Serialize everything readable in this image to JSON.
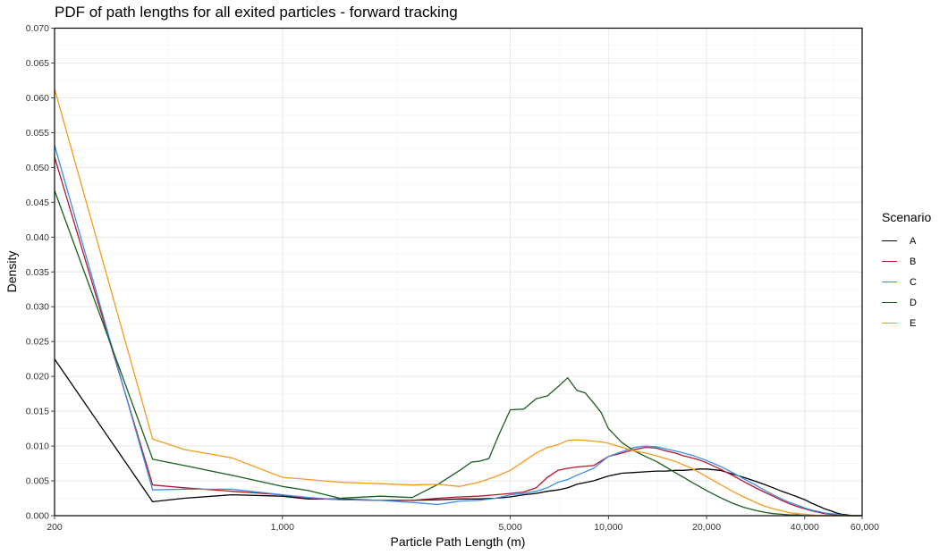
{
  "chart_data": {
    "type": "line",
    "title": "PDF of path lengths for all exited particles - forward tracking",
    "xlabel": "Particle Path Length (m)",
    "ylabel": "Density",
    "xscale": "log",
    "xlim": [
      200,
      60000
    ],
    "ylim": [
      0,
      0.07
    ],
    "x_ticks": [
      200,
      1000,
      5000,
      10000,
      20000,
      40000,
      60000
    ],
    "x_tick_labels": [
      "200",
      "1,000",
      "5,000",
      "10,000",
      "20,000",
      "40,000",
      "60,000"
    ],
    "y_ticks": [
      0,
      0.005,
      0.01,
      0.015,
      0.02,
      0.025,
      0.03,
      0.035,
      0.04,
      0.045,
      0.05,
      0.055,
      0.06,
      0.065,
      0.07
    ],
    "y_tick_labels": [
      "0.000",
      "0.005",
      "0.010",
      "0.015",
      "0.020",
      "0.025",
      "0.030",
      "0.035",
      "0.040",
      "0.045",
      "0.050",
      "0.055",
      "0.060",
      "0.065",
      "0.070"
    ],
    "grid": true,
    "legend": {
      "title": "Scenario",
      "position": "right"
    },
    "series": [
      {
        "name": "A",
        "color": "#000000",
        "x": [
          200,
          400,
          500,
          700,
          1000,
          1200,
          1500,
          2000,
          2500,
          3000,
          3500,
          4000,
          4500,
          5000,
          5500,
          6000,
          6500,
          7000,
          7500,
          8000,
          9000,
          10000,
          11000,
          12000,
          13000,
          14000,
          15000,
          16000,
          17000,
          18000,
          19000,
          20000,
          22000,
          24000,
          26000,
          28000,
          30000,
          32000,
          34000,
          36000,
          38000,
          40000,
          42000,
          44000,
          46000,
          48000,
          50000,
          52000,
          54000,
          56000,
          60000
        ],
        "y": [
          0.0225,
          0.002,
          0.0025,
          0.003,
          0.0028,
          0.0024,
          0.0024,
          0.0022,
          0.0022,
          0.0023,
          0.0024,
          0.0024,
          0.0025,
          0.0027,
          0.003,
          0.0032,
          0.0035,
          0.0037,
          0.004,
          0.0045,
          0.005,
          0.0057,
          0.0061,
          0.0062,
          0.0063,
          0.0064,
          0.0064,
          0.0065,
          0.0065,
          0.0066,
          0.0067,
          0.0067,
          0.0065,
          0.006,
          0.0055,
          0.005,
          0.0045,
          0.004,
          0.0035,
          0.0031,
          0.0027,
          0.0023,
          0.0018,
          0.0014,
          0.001,
          0.0007,
          0.0004,
          0.0002,
          0.0001,
          0,
          0
        ]
      },
      {
        "name": "B",
        "color": "#b2182b",
        "x": [
          200,
          400,
          500,
          700,
          1000,
          1200,
          1500,
          2000,
          2500,
          3000,
          3500,
          4000,
          4500,
          5000,
          5500,
          6000,
          6500,
          7000,
          7500,
          8000,
          9000,
          10000,
          11000,
          12000,
          13000,
          14000,
          15000,
          16000,
          17000,
          18000,
          19000,
          20000,
          22000,
          24000,
          26000,
          28000,
          30000,
          32000,
          34000,
          36000,
          38000,
          40000,
          42000,
          44000,
          46000,
          48000,
          50000,
          52000,
          54000,
          56000,
          60000
        ],
        "y": [
          0.0515,
          0.0044,
          0.004,
          0.0035,
          0.003,
          0.0025,
          0.0023,
          0.0022,
          0.0022,
          0.0025,
          0.0027,
          0.0028,
          0.003,
          0.0032,
          0.0034,
          0.004,
          0.0055,
          0.0065,
          0.0068,
          0.007,
          0.0072,
          0.0085,
          0.009,
          0.0095,
          0.0098,
          0.0097,
          0.0093,
          0.009,
          0.0086,
          0.0083,
          0.008,
          0.0076,
          0.0067,
          0.0058,
          0.0049,
          0.0041,
          0.0034,
          0.0028,
          0.0022,
          0.0017,
          0.0013,
          0.001,
          0.0007,
          0.0005,
          0.0003,
          0.0002,
          0.0001,
          0.0001,
          0,
          0,
          0
        ]
      },
      {
        "name": "C",
        "color": "#3a8ce8",
        "x": [
          200,
          400,
          500,
          700,
          1000,
          1200,
          1500,
          2000,
          2500,
          3000,
          3500,
          4000,
          4500,
          5000,
          5500,
          6000,
          6500,
          7000,
          7500,
          8000,
          9000,
          10000,
          11000,
          12000,
          13000,
          14000,
          15000,
          16000,
          17000,
          18000,
          19000,
          20000,
          22000,
          24000,
          26000,
          28000,
          30000,
          32000,
          34000,
          36000,
          38000,
          40000,
          42000,
          44000,
          46000,
          48000,
          50000,
          52000,
          54000,
          56000,
          60000
        ],
        "y": [
          0.0532,
          0.0037,
          0.0038,
          0.0038,
          0.003,
          0.0026,
          0.0023,
          0.0022,
          0.0019,
          0.0016,
          0.0021,
          0.0022,
          0.0025,
          0.003,
          0.0032,
          0.0035,
          0.004,
          0.0048,
          0.0052,
          0.0058,
          0.0068,
          0.0085,
          0.0092,
          0.0098,
          0.01,
          0.0099,
          0.0096,
          0.0093,
          0.009,
          0.0087,
          0.0083,
          0.0079,
          0.0071,
          0.0062,
          0.0053,
          0.0045,
          0.0037,
          0.003,
          0.0024,
          0.0019,
          0.0015,
          0.0011,
          0.0008,
          0.0006,
          0.0004,
          0.0003,
          0.0002,
          0.0001,
          0,
          0,
          0
        ]
      },
      {
        "name": "D",
        "color": "#1b5e20",
        "x": [
          200,
          400,
          500,
          700,
          1000,
          1200,
          1500,
          2000,
          2500,
          3000,
          3500,
          3800,
          4000,
          4300,
          4600,
          5000,
          5500,
          6000,
          6500,
          7000,
          7500,
          8000,
          8500,
          9000,
          9500,
          10000,
          11000,
          12000,
          13000,
          14000,
          15000,
          16000,
          17000,
          18000,
          19000,
          20000,
          22000,
          24000,
          26000,
          28000,
          30000,
          32000,
          34000,
          36000,
          38000,
          40000,
          45000,
          50000,
          60000
        ],
        "y": [
          0.0467,
          0.0081,
          0.0072,
          0.0058,
          0.0042,
          0.0036,
          0.0025,
          0.0028,
          0.0026,
          0.0045,
          0.0065,
          0.0077,
          0.0078,
          0.0082,
          0.0115,
          0.0152,
          0.0153,
          0.0168,
          0.0172,
          0.0185,
          0.0198,
          0.018,
          0.0176,
          0.0162,
          0.0148,
          0.0125,
          0.0105,
          0.0093,
          0.0085,
          0.0078,
          0.007,
          0.0062,
          0.0055,
          0.0048,
          0.0042,
          0.0036,
          0.0026,
          0.0018,
          0.0012,
          0.0008,
          0.0005,
          0.0003,
          0.0002,
          0.0001,
          0.0001,
          0,
          0,
          0,
          0
        ]
      },
      {
        "name": "E",
        "color": "#f59a1f",
        "x": [
          200,
          400,
          500,
          700,
          1000,
          1200,
          1500,
          2000,
          2500,
          3000,
          3500,
          4000,
          4500,
          5000,
          5500,
          6000,
          6500,
          7000,
          7500,
          8000,
          8500,
          9000,
          9500,
          10000,
          11000,
          12000,
          13000,
          14000,
          15000,
          16000,
          17000,
          18000,
          19000,
          20000,
          22000,
          24000,
          26000,
          28000,
          30000,
          32000,
          34000,
          36000,
          38000,
          40000,
          42000,
          45000,
          50000,
          60000
        ],
        "y": [
          0.0613,
          0.011,
          0.0095,
          0.0083,
          0.0055,
          0.0052,
          0.0048,
          0.0046,
          0.0044,
          0.0045,
          0.0042,
          0.0048,
          0.0056,
          0.0065,
          0.0078,
          0.009,
          0.0098,
          0.0102,
          0.0108,
          0.0109,
          0.0108,
          0.0107,
          0.0106,
          0.0104,
          0.0098,
          0.0093,
          0.009,
          0.0086,
          0.0082,
          0.0078,
          0.0073,
          0.0068,
          0.0062,
          0.0056,
          0.0045,
          0.0035,
          0.0027,
          0.002,
          0.0014,
          0.001,
          0.0007,
          0.0004,
          0.0003,
          0.0002,
          0.0001,
          0,
          0,
          0
        ]
      }
    ]
  }
}
